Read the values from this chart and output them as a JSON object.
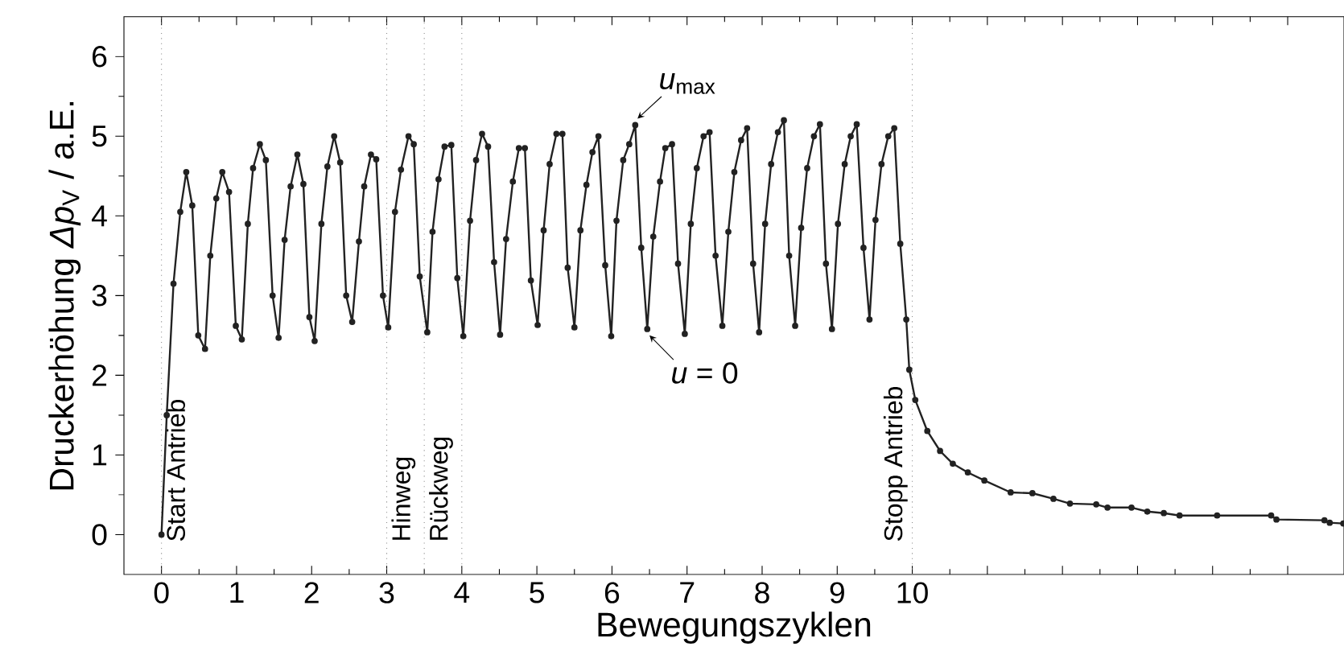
{
  "chart_data": {
    "type": "line",
    "xlabel": "Bewegungszyklen",
    "ylabel": "Druckerhöhung *Δp*$_{V}$ / a.E.",
    "xlim": [
      -0.5,
      15.75
    ],
    "ylim": [
      -0.5,
      6.5
    ],
    "xticks": [
      0,
      1,
      2,
      3,
      4,
      5,
      6,
      7,
      8,
      9,
      10,
      {
        "value": 11,
        "label": null
      },
      {
        "value": 12,
        "label": null
      },
      {
        "value": 13,
        "label": null
      },
      {
        "value": 14,
        "label": null
      },
      {
        "value": 15,
        "label": null
      }
    ],
    "yticks": [
      0,
      1,
      2,
      3,
      4,
      5,
      6
    ],
    "marker": "circle",
    "line_style": "solid",
    "series": [
      {
        "color": "#222222",
        "x": [
          0,
          0.07,
          0.16,
          0.25,
          0.33,
          0.41,
          0.49,
          0.58,
          0.65,
          0.73,
          0.81,
          0.9,
          0.99,
          1.07,
          1.15,
          1.22,
          1.31,
          1.39,
          1.48,
          1.56,
          1.64,
          1.72,
          1.81,
          1.89,
          1.97,
          2.04,
          2.13,
          2.21,
          2.3,
          2.38,
          2.46,
          2.54,
          2.63,
          2.7,
          2.79,
          2.86,
          2.95,
          3.02,
          3.11,
          3.19,
          3.29,
          3.36,
          3.44,
          3.54,
          3.61,
          3.69,
          3.77,
          3.86,
          3.94,
          4.02,
          4.11,
          4.19,
          4.27,
          4.35,
          4.43,
          4.51,
          4.59,
          4.68,
          4.76,
          4.84,
          4.92,
          5.01,
          5.09,
          5.17,
          5.26,
          5.34,
          5.41,
          5.5,
          5.58,
          5.66,
          5.74,
          5.82,
          5.91,
          5.99,
          6.06,
          6.15,
          6.23,
          6.31,
          6.39,
          6.47,
          6.55,
          6.64,
          6.71,
          6.8,
          6.88,
          6.97,
          7.05,
          7.13,
          7.22,
          7.3,
          7.38,
          7.47,
          7.55,
          7.63,
          7.72,
          7.8,
          7.88,
          7.96,
          8.04,
          8.12,
          8.21,
          8.29,
          8.36,
          8.44,
          8.52,
          8.6,
          8.69,
          8.77,
          8.85,
          8.93,
          9.01,
          9.1,
          9.18,
          9.26,
          9.35,
          9.43,
          9.51,
          9.59,
          9.68,
          9.76,
          9.84,
          9.92,
          9.96,
          10.04,
          10.2,
          10.37,
          10.54,
          10.74,
          10.96,
          11.31,
          11.6,
          11.88,
          12.1,
          12.45,
          12.6,
          12.92,
          13.13,
          13.35,
          13.56,
          14.06,
          14.78,
          14.85,
          15.49,
          15.56,
          15.74
        ],
        "values": [
          0,
          1.5,
          3.15,
          4.05,
          4.55,
          4.13,
          2.5,
          2.33,
          3.5,
          4.22,
          4.55,
          4.3,
          2.62,
          2.45,
          3.9,
          4.6,
          4.9,
          4.7,
          3.0,
          2.47,
          3.7,
          4.37,
          4.77,
          4.4,
          2.73,
          2.43,
          3.9,
          4.62,
          5.0,
          4.67,
          3.0,
          2.67,
          3.68,
          4.37,
          4.77,
          4.71,
          3.0,
          2.6,
          4.05,
          4.58,
          5.0,
          4.9,
          3.24,
          2.54,
          3.8,
          4.46,
          4.87,
          4.89,
          3.22,
          2.49,
          3.94,
          4.7,
          5.03,
          4.87,
          3.42,
          2.51,
          3.71,
          4.43,
          4.85,
          4.85,
          3.19,
          2.63,
          3.82,
          4.65,
          5.03,
          5.03,
          3.35,
          2.6,
          3.82,
          4.39,
          4.8,
          5.0,
          3.38,
          2.49,
          3.94,
          4.7,
          4.9,
          5.14,
          3.6,
          2.58,
          3.74,
          4.43,
          4.85,
          4.9,
          3.4,
          2.52,
          3.9,
          4.6,
          5.0,
          5.05,
          3.5,
          2.62,
          3.8,
          4.55,
          4.95,
          5.1,
          3.4,
          2.54,
          3.9,
          4.65,
          5.05,
          5.2,
          3.5,
          2.62,
          3.85,
          4.6,
          5.0,
          5.15,
          3.4,
          2.58,
          3.9,
          4.65,
          5.0,
          5.15,
          3.6,
          2.7,
          3.95,
          4.65,
          5.0,
          5.1,
          3.65,
          2.7,
          2.07,
          1.69,
          1.3,
          1.05,
          0.89,
          0.78,
          0.68,
          0.53,
          0.52,
          0.45,
          0.39,
          0.38,
          0.34,
          0.34,
          0.29,
          0.27,
          0.24,
          0.24,
          0.24,
          0.19,
          0.18,
          0.15,
          0.14
        ]
      }
    ],
    "ref_lines": [
      {
        "axis": "x",
        "value": 0,
        "label": "Start Antrieb",
        "color": "#888888",
        "line_style": "dotted"
      },
      {
        "axis": "x",
        "value": 3,
        "label": "Hinweg",
        "color": "#888888",
        "line_style": "dotted"
      },
      {
        "axis": "x",
        "value": 3.5,
        "label": "Rückweg",
        "color": "#888888",
        "line_style": "dotted"
      },
      {
        "axis": "x",
        "value": 4,
        "color": "#888888",
        "line_style": "dotted"
      },
      {
        "axis": "x",
        "value": 10,
        "label": "Stopp Antrieb",
        "color": "#888888",
        "line_style": "dotted"
      }
    ],
    "annotations": [
      {
        "text": "*u*$_{max}$",
        "x": 6.31,
        "y": 5.14
      },
      {
        "text": "*u* = 0",
        "x": 6.47,
        "y": 2.58
      }
    ]
  }
}
